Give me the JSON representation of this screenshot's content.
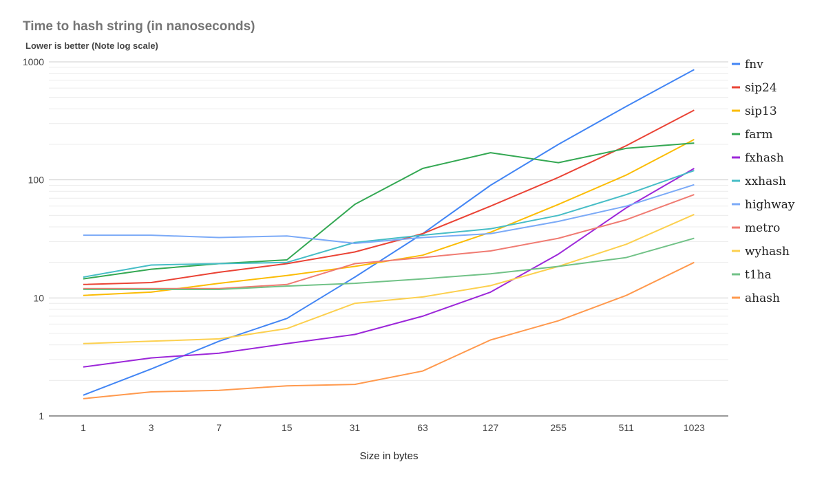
{
  "chart_data": {
    "type": "line",
    "title": "Time to hash string (in nanoseconds)",
    "subtitle": "Lower is better (Note log scale)",
    "xlabel": "Size in bytes",
    "ylabel": "",
    "yscale": "log",
    "ylim": [
      1,
      1000
    ],
    "yticks": [
      "1",
      "10",
      "100",
      "1000"
    ],
    "grid": true,
    "legend_position": "right",
    "categories": [
      "1",
      "3",
      "7",
      "15",
      "31",
      "63",
      "127",
      "255",
      "511",
      "1023"
    ],
    "series": [
      {
        "name": "fnv",
        "color": "#4285f4",
        "values": [
          1.5,
          2.5,
          4.3,
          6.7,
          15,
          35,
          90,
          200,
          420,
          860
        ]
      },
      {
        "name": "sip24",
        "color": "#ea4335",
        "values": [
          13,
          13.5,
          16.5,
          19.5,
          24.5,
          35,
          60,
          105,
          195,
          390
        ]
      },
      {
        "name": "sip13",
        "color": "#fbbc04",
        "values": [
          10.5,
          11.2,
          13.3,
          15.5,
          18.5,
          23,
          36,
          62,
          110,
          220
        ]
      },
      {
        "name": "farm",
        "color": "#34a853",
        "values": [
          14.5,
          17.5,
          19.5,
          21,
          62,
          125,
          170,
          140,
          185,
          205
        ]
      },
      {
        "name": "fxhash",
        "color": "#9c27d9",
        "values": [
          2.6,
          3.1,
          3.4,
          4.1,
          4.9,
          7,
          11.2,
          23.5,
          58,
          125
        ]
      },
      {
        "name": "xxhash",
        "color": "#46bdc6",
        "values": [
          15,
          19,
          19.5,
          20,
          29.5,
          34,
          38.5,
          50,
          75,
          120
        ]
      },
      {
        "name": "highway",
        "color": "#7baaf7",
        "values": [
          34,
          34,
          32.5,
          33.5,
          29,
          32.5,
          35,
          44.5,
          60,
          91
        ]
      },
      {
        "name": "metro",
        "color": "#f07b72",
        "values": [
          12,
          12,
          12,
          13,
          19.5,
          22,
          25,
          32,
          46,
          75
        ]
      },
      {
        "name": "wyhash",
        "color": "#fcd04f",
        "values": [
          4.1,
          4.3,
          4.5,
          5.5,
          9,
          10.2,
          12.7,
          18.5,
          28.5,
          51
        ]
      },
      {
        "name": "t1ha",
        "color": "#71c287",
        "values": [
          11.8,
          11.8,
          11.8,
          12.6,
          13.3,
          14.5,
          16,
          18.5,
          22,
          32
        ]
      },
      {
        "name": "ahash",
        "color": "#ff994d",
        "values": [
          1.4,
          1.6,
          1.65,
          1.8,
          1.85,
          2.4,
          4.4,
          6.4,
          10.5,
          20
        ]
      }
    ]
  }
}
